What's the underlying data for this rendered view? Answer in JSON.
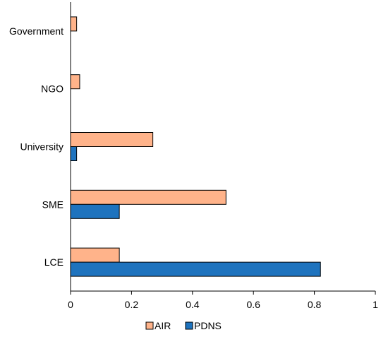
{
  "chart_data": {
    "type": "bar",
    "orientation": "horizontal",
    "title": "",
    "xlabel": "",
    "ylabel": "",
    "categories": [
      "Government",
      "NGO",
      "University",
      "SME",
      "LCE"
    ],
    "series": [
      {
        "name": "AIR",
        "color": "#FFB38A",
        "values": [
          0.02,
          0.03,
          0.27,
          0.51,
          0.16
        ]
      },
      {
        "name": "PDNS",
        "color": "#1E73BE",
        "values": [
          0.0,
          0.0,
          0.02,
          0.16,
          0.82
        ]
      }
    ],
    "xlim": [
      0,
      1
    ],
    "xticks": [
      "0",
      "0.2",
      "0.4",
      "0.6",
      "0.8",
      "1"
    ],
    "grid": false,
    "legend_position": "bottom"
  }
}
